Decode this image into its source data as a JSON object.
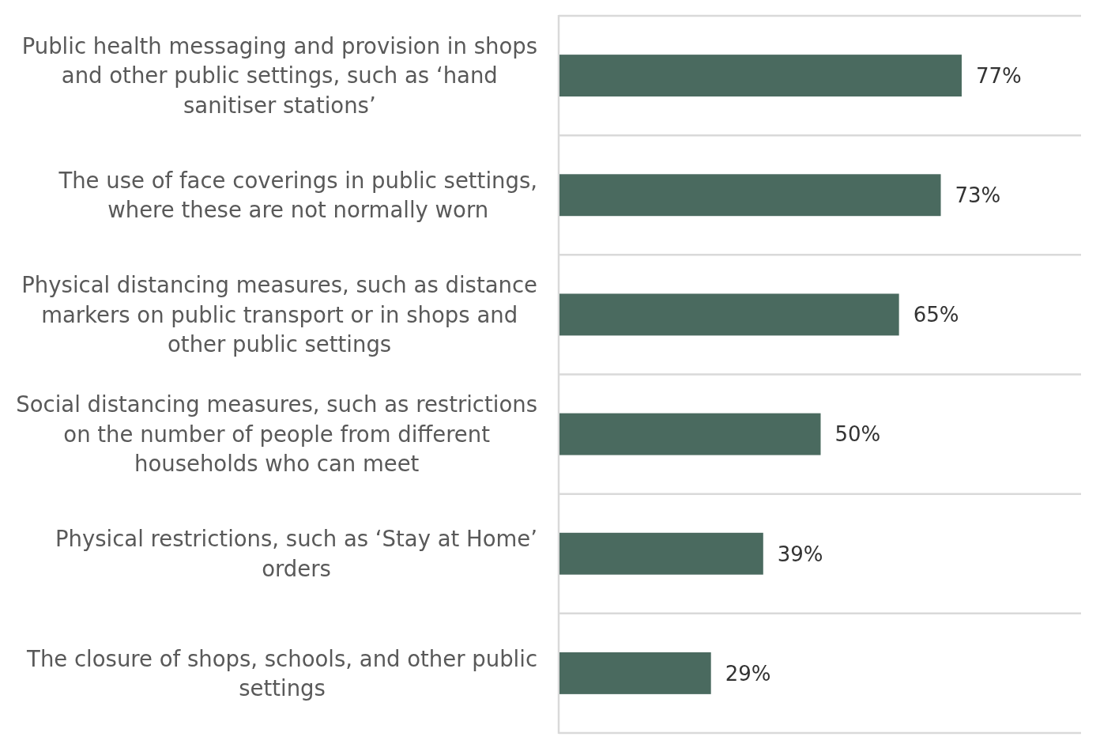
{
  "chart_data": {
    "type": "bar",
    "orientation": "horizontal",
    "categories": [
      "Public health messaging and provision in shops and other public settings, such as ‘hand sanitiser stations’",
      "The use of face coverings in public settings, where these are not normally worn",
      "Physical distancing measures, such as distance markers on public transport or in shops and other public settings",
      "Social distancing measures, such as restrictions on the number of people from different households who can meet",
      "Physical restrictions, such as ‘Stay at Home’ orders",
      "The closure of shops, schools, and other public settings"
    ],
    "values": [
      77,
      73,
      65,
      50,
      39,
      29
    ],
    "value_labels": [
      "77%",
      "73%",
      "65%",
      "50%",
      "39%",
      "29%"
    ],
    "color": "#4a6a5f",
    "xlim": [
      0,
      100
    ],
    "grid": "y",
    "tick_labels": "y"
  }
}
